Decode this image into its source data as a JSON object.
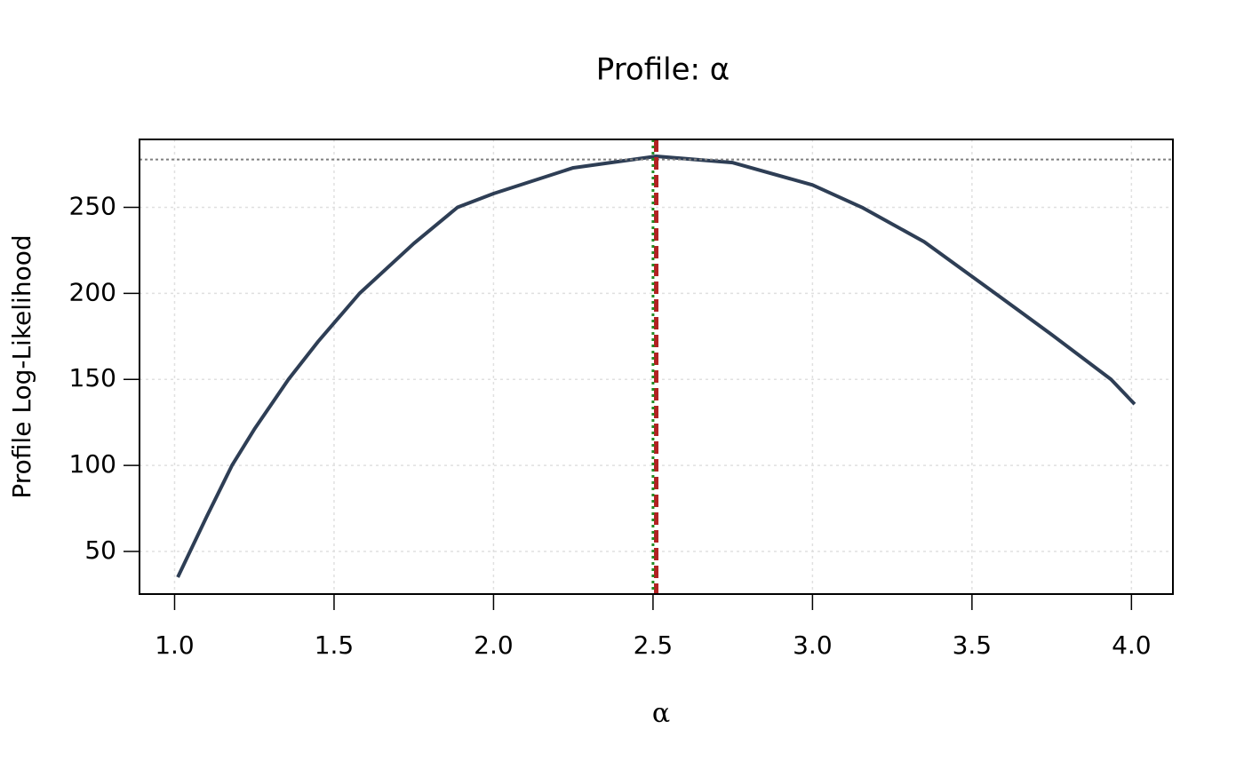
{
  "chart_data": {
    "type": "line",
    "title": "Profile: α",
    "x_label": "α",
    "y_label": "Profile Log-Likelihood",
    "series": [
      {
        "color": "#2e3e55",
        "x": [
          1.01,
          1.1,
          1.18,
          1.25,
          1.357,
          1.45,
          1.58,
          1.75,
          1.887,
          2.0,
          2.25,
          2.51,
          2.75,
          3.0,
          3.155,
          3.35,
          3.573,
          3.75,
          3.936,
          4.01
        ],
        "values": [
          35,
          70,
          100,
          121,
          150,
          172,
          200,
          229,
          250,
          258,
          273,
          279.7,
          276,
          263,
          250,
          230,
          200,
          176,
          150,
          135.6
        ]
      }
    ],
    "hline": {
      "value": 277.8,
      "color": "#808080"
    },
    "vlines": [
      {
        "value": 2.51,
        "color": "#b22222",
        "style": "dashed"
      },
      {
        "value": 2.5,
        "color": "#228b22",
        "style": "dotted"
      }
    ],
    "xlim": [
      0.89,
      4.13
    ],
    "ylim": [
      25.2,
      289.5
    ],
    "xticks": [
      {
        "value": 1,
        "label": "1.0"
      },
      {
        "value": 1.5,
        "label": "1.5"
      },
      {
        "value": 2,
        "label": "2.0"
      },
      {
        "value": 2.5,
        "label": "2.5"
      },
      {
        "value": 3,
        "label": "3.0"
      },
      {
        "value": 3.5,
        "label": "3.5"
      },
      {
        "value": 4,
        "label": "4.0"
      }
    ],
    "yticks": [
      50,
      100,
      150,
      200,
      250
    ],
    "grid": true
  }
}
